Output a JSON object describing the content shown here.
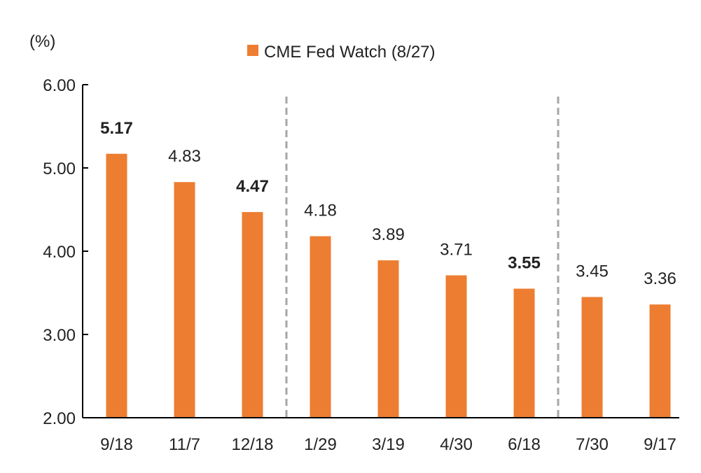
{
  "chart_data": {
    "type": "bar",
    "unit_label": "(%)",
    "categories": [
      "9/18",
      "11/7",
      "12/18",
      "1/29",
      "3/19",
      "4/30",
      "6/18",
      "7/30",
      "9/17"
    ],
    "series": [
      {
        "name": "CME Fed Watch (8/27)",
        "values": [
          5.17,
          4.83,
          4.47,
          4.18,
          3.89,
          3.71,
          3.55,
          3.45,
          3.36
        ],
        "data_labels": [
          "5.17",
          "4.83",
          "4.47",
          "4.18",
          "3.89",
          "3.71",
          "3.55",
          "3.45",
          "3.36"
        ]
      }
    ],
    "bold_labels": [
      0,
      2,
      6
    ],
    "ylim": [
      2.0,
      6.0
    ],
    "yticks": [
      "2.00",
      "3.00",
      "4.00",
      "5.00",
      "6.00"
    ],
    "separators_after_index": [
      2,
      6
    ],
    "grid": false,
    "legend_position": "top-center",
    "colors": {
      "bar": "#ED7D31",
      "axis": "#000000",
      "separator": "#A6A6A6",
      "text": "#222222"
    }
  }
}
